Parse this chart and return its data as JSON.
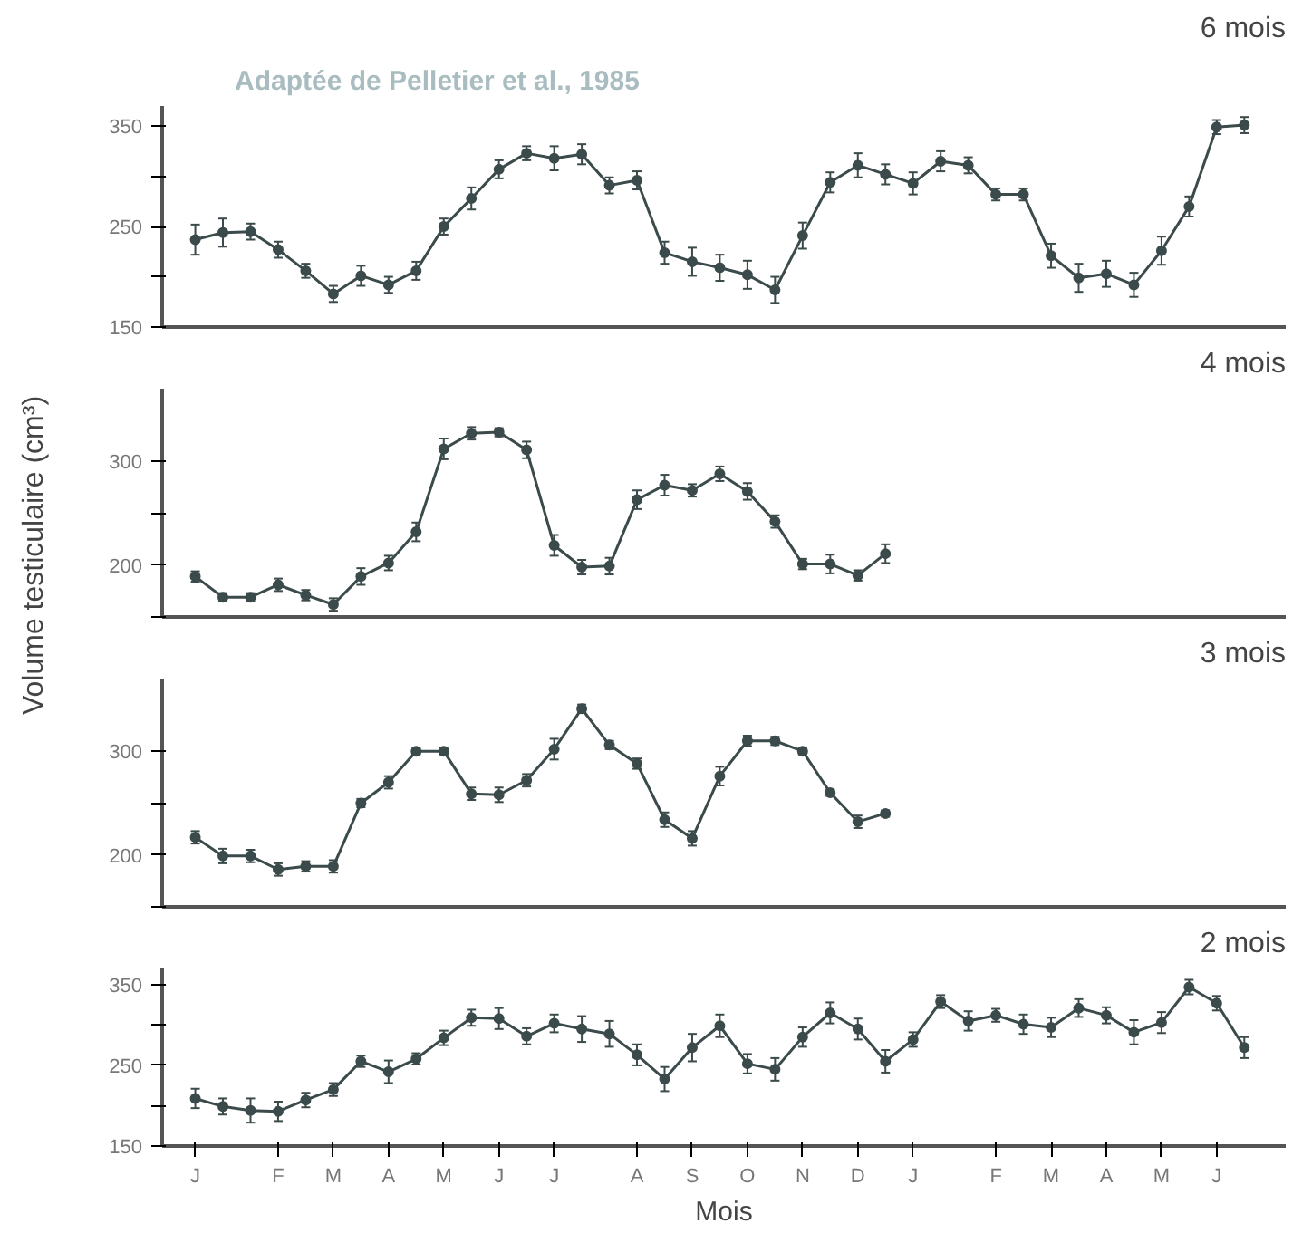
{
  "chart_data": [
    {
      "type": "line",
      "title": "6 mois",
      "annotations": [
        "Adaptée de Pelletier et al., 1985"
      ],
      "ylim": [
        150,
        370
      ],
      "yticks": [
        150,
        {
          "value": 200,
          "label": null
        },
        250,
        {
          "value": 300,
          "label": null
        },
        350
      ],
      "categories": [
        null,
        null,
        null,
        null,
        null,
        null,
        null,
        null,
        null,
        null,
        null,
        null,
        null,
        null,
        null,
        null,
        null,
        null,
        null,
        null,
        null,
        null,
        null,
        null,
        null,
        null,
        null,
        null,
        null,
        null,
        null,
        null,
        null,
        null,
        null,
        null,
        null,
        null,
        null
      ],
      "tick_labels": "y",
      "grid": false,
      "marker": "circle",
      "line_style": "solid",
      "series": [
        {
          "color": "#3b4a4a",
          "values": [
            237,
            244,
            245,
            227,
            206,
            183,
            201,
            192,
            206,
            250,
            278,
            307,
            323,
            318,
            322,
            291,
            296,
            224,
            215,
            209,
            202,
            187,
            241,
            294,
            311,
            302,
            293,
            315,
            311,
            282,
            282,
            221,
            199,
            203,
            192,
            226,
            270,
            349,
            351
          ],
          "errors": [
            15,
            14,
            8,
            8,
            7,
            8,
            10,
            8,
            9,
            8,
            11,
            9,
            7,
            12,
            10,
            8,
            9,
            11,
            14,
            13,
            14,
            13,
            13,
            10,
            12,
            10,
            11,
            10,
            8,
            6,
            6,
            12,
            14,
            13,
            12,
            14,
            10,
            7,
            8
          ]
        }
      ]
    },
    {
      "type": "line",
      "title": "4 mois",
      "ylabel": "Volume testiculaire (cm³)",
      "ylim": [
        150,
        370
      ],
      "yticks": [
        {
          "value": 150,
          "label": null
        },
        200,
        {
          "value": 250,
          "label": null
        },
        300
      ],
      "categories": [
        null,
        null,
        null,
        null,
        null,
        null,
        null,
        null,
        null,
        null,
        null,
        null,
        null,
        null,
        null,
        null,
        null,
        null,
        null,
        null,
        null,
        null,
        null,
        null,
        null,
        null,
        null,
        null,
        null,
        null,
        null,
        null,
        null,
        null,
        null,
        null,
        null,
        null,
        null
      ],
      "tick_labels": "y",
      "grid": false,
      "marker": "circle",
      "line_style": "solid",
      "series": [
        {
          "color": "#3b4a4a",
          "values": [
            189,
            169,
            169,
            181,
            171,
            162,
            189,
            202,
            232,
            312,
            327,
            328,
            311,
            219,
            198,
            199,
            263,
            277,
            272,
            288,
            271,
            242,
            201,
            201,
            190,
            211,
            null,
            null,
            null,
            null,
            null,
            null,
            null,
            null,
            null,
            null,
            null,
            null,
            null
          ],
          "errors": [
            5,
            4,
            4,
            6,
            5,
            6,
            8,
            7,
            9,
            10,
            6,
            4,
            8,
            10,
            7,
            8,
            9,
            10,
            6,
            7,
            8,
            6,
            5,
            9,
            5,
            9,
            null,
            null,
            null,
            null,
            null,
            null,
            null,
            null,
            null,
            null,
            null,
            null,
            null
          ]
        }
      ]
    },
    {
      "type": "line",
      "title": "3 mois",
      "ylim": [
        150,
        370
      ],
      "yticks": [
        {
          "value": 150,
          "label": null
        },
        200,
        {
          "value": 250,
          "label": null
        },
        300
      ],
      "categories": [
        null,
        null,
        null,
        null,
        null,
        null,
        null,
        null,
        null,
        null,
        null,
        null,
        null,
        null,
        null,
        null,
        null,
        null,
        null,
        null,
        null,
        null,
        null,
        null,
        null,
        null,
        null,
        null,
        null,
        null,
        null,
        null,
        null,
        null,
        null,
        null,
        null,
        null,
        null
      ],
      "tick_labels": "y",
      "grid": false,
      "marker": "circle",
      "line_style": "solid",
      "series": [
        {
          "color": "#3b4a4a",
          "values": [
            217,
            199,
            199,
            186,
            189,
            189,
            250,
            270,
            300,
            300,
            259,
            258,
            272,
            302,
            341,
            306,
            288,
            234,
            216,
            276,
            310,
            310,
            300,
            260,
            232,
            240,
            null,
            null,
            null,
            null,
            null,
            null,
            null,
            null,
            null,
            null,
            null,
            null,
            null
          ],
          "errors": [
            6,
            7,
            6,
            6,
            5,
            6,
            4,
            6,
            3,
            3,
            6,
            7,
            6,
            10,
            4,
            4,
            5,
            7,
            7,
            9,
            5,
            4,
            3,
            3,
            6,
            3,
            null,
            null,
            null,
            null,
            null,
            null,
            null,
            null,
            null,
            null,
            null,
            null,
            null
          ]
        }
      ]
    },
    {
      "type": "line",
      "title": "2 mois",
      "xlabel": "Mois",
      "ylim": [
        150,
        370
      ],
      "yticks": [
        150,
        {
          "value": 200,
          "label": null
        },
        250,
        {
          "value": 300,
          "label": null
        },
        350
      ],
      "categories": [
        "J",
        null,
        null,
        "F",
        null,
        "M",
        null,
        "A",
        null,
        "M",
        null,
        "J",
        null,
        "J",
        null,
        null,
        "A",
        null,
        "S",
        null,
        "O",
        null,
        "N",
        null,
        "D",
        null,
        "J",
        null,
        null,
        "F",
        null,
        "M",
        null,
        "A",
        null,
        "M",
        null,
        "J",
        null
      ],
      "grid": false,
      "marker": "circle",
      "line_style": "solid",
      "series": [
        {
          "color": "#3b4a4a",
          "values": [
            209,
            199,
            194,
            193,
            207,
            220,
            255,
            242,
            258,
            284,
            309,
            308,
            286,
            302,
            295,
            289,
            263,
            233,
            272,
            299,
            252,
            245,
            285,
            315,
            295,
            255,
            282,
            329,
            305,
            312,
            301,
            297,
            321,
            312,
            291,
            303,
            347,
            327,
            272
          ],
          "errors": [
            12,
            10,
            15,
            12,
            9,
            8,
            7,
            14,
            7,
            9,
            10,
            13,
            10,
            11,
            16,
            16,
            13,
            15,
            17,
            14,
            12,
            14,
            12,
            13,
            13,
            14,
            9,
            8,
            12,
            8,
            12,
            12,
            11,
            10,
            15,
            13,
            9,
            9,
            13
          ]
        }
      ]
    }
  ]
}
